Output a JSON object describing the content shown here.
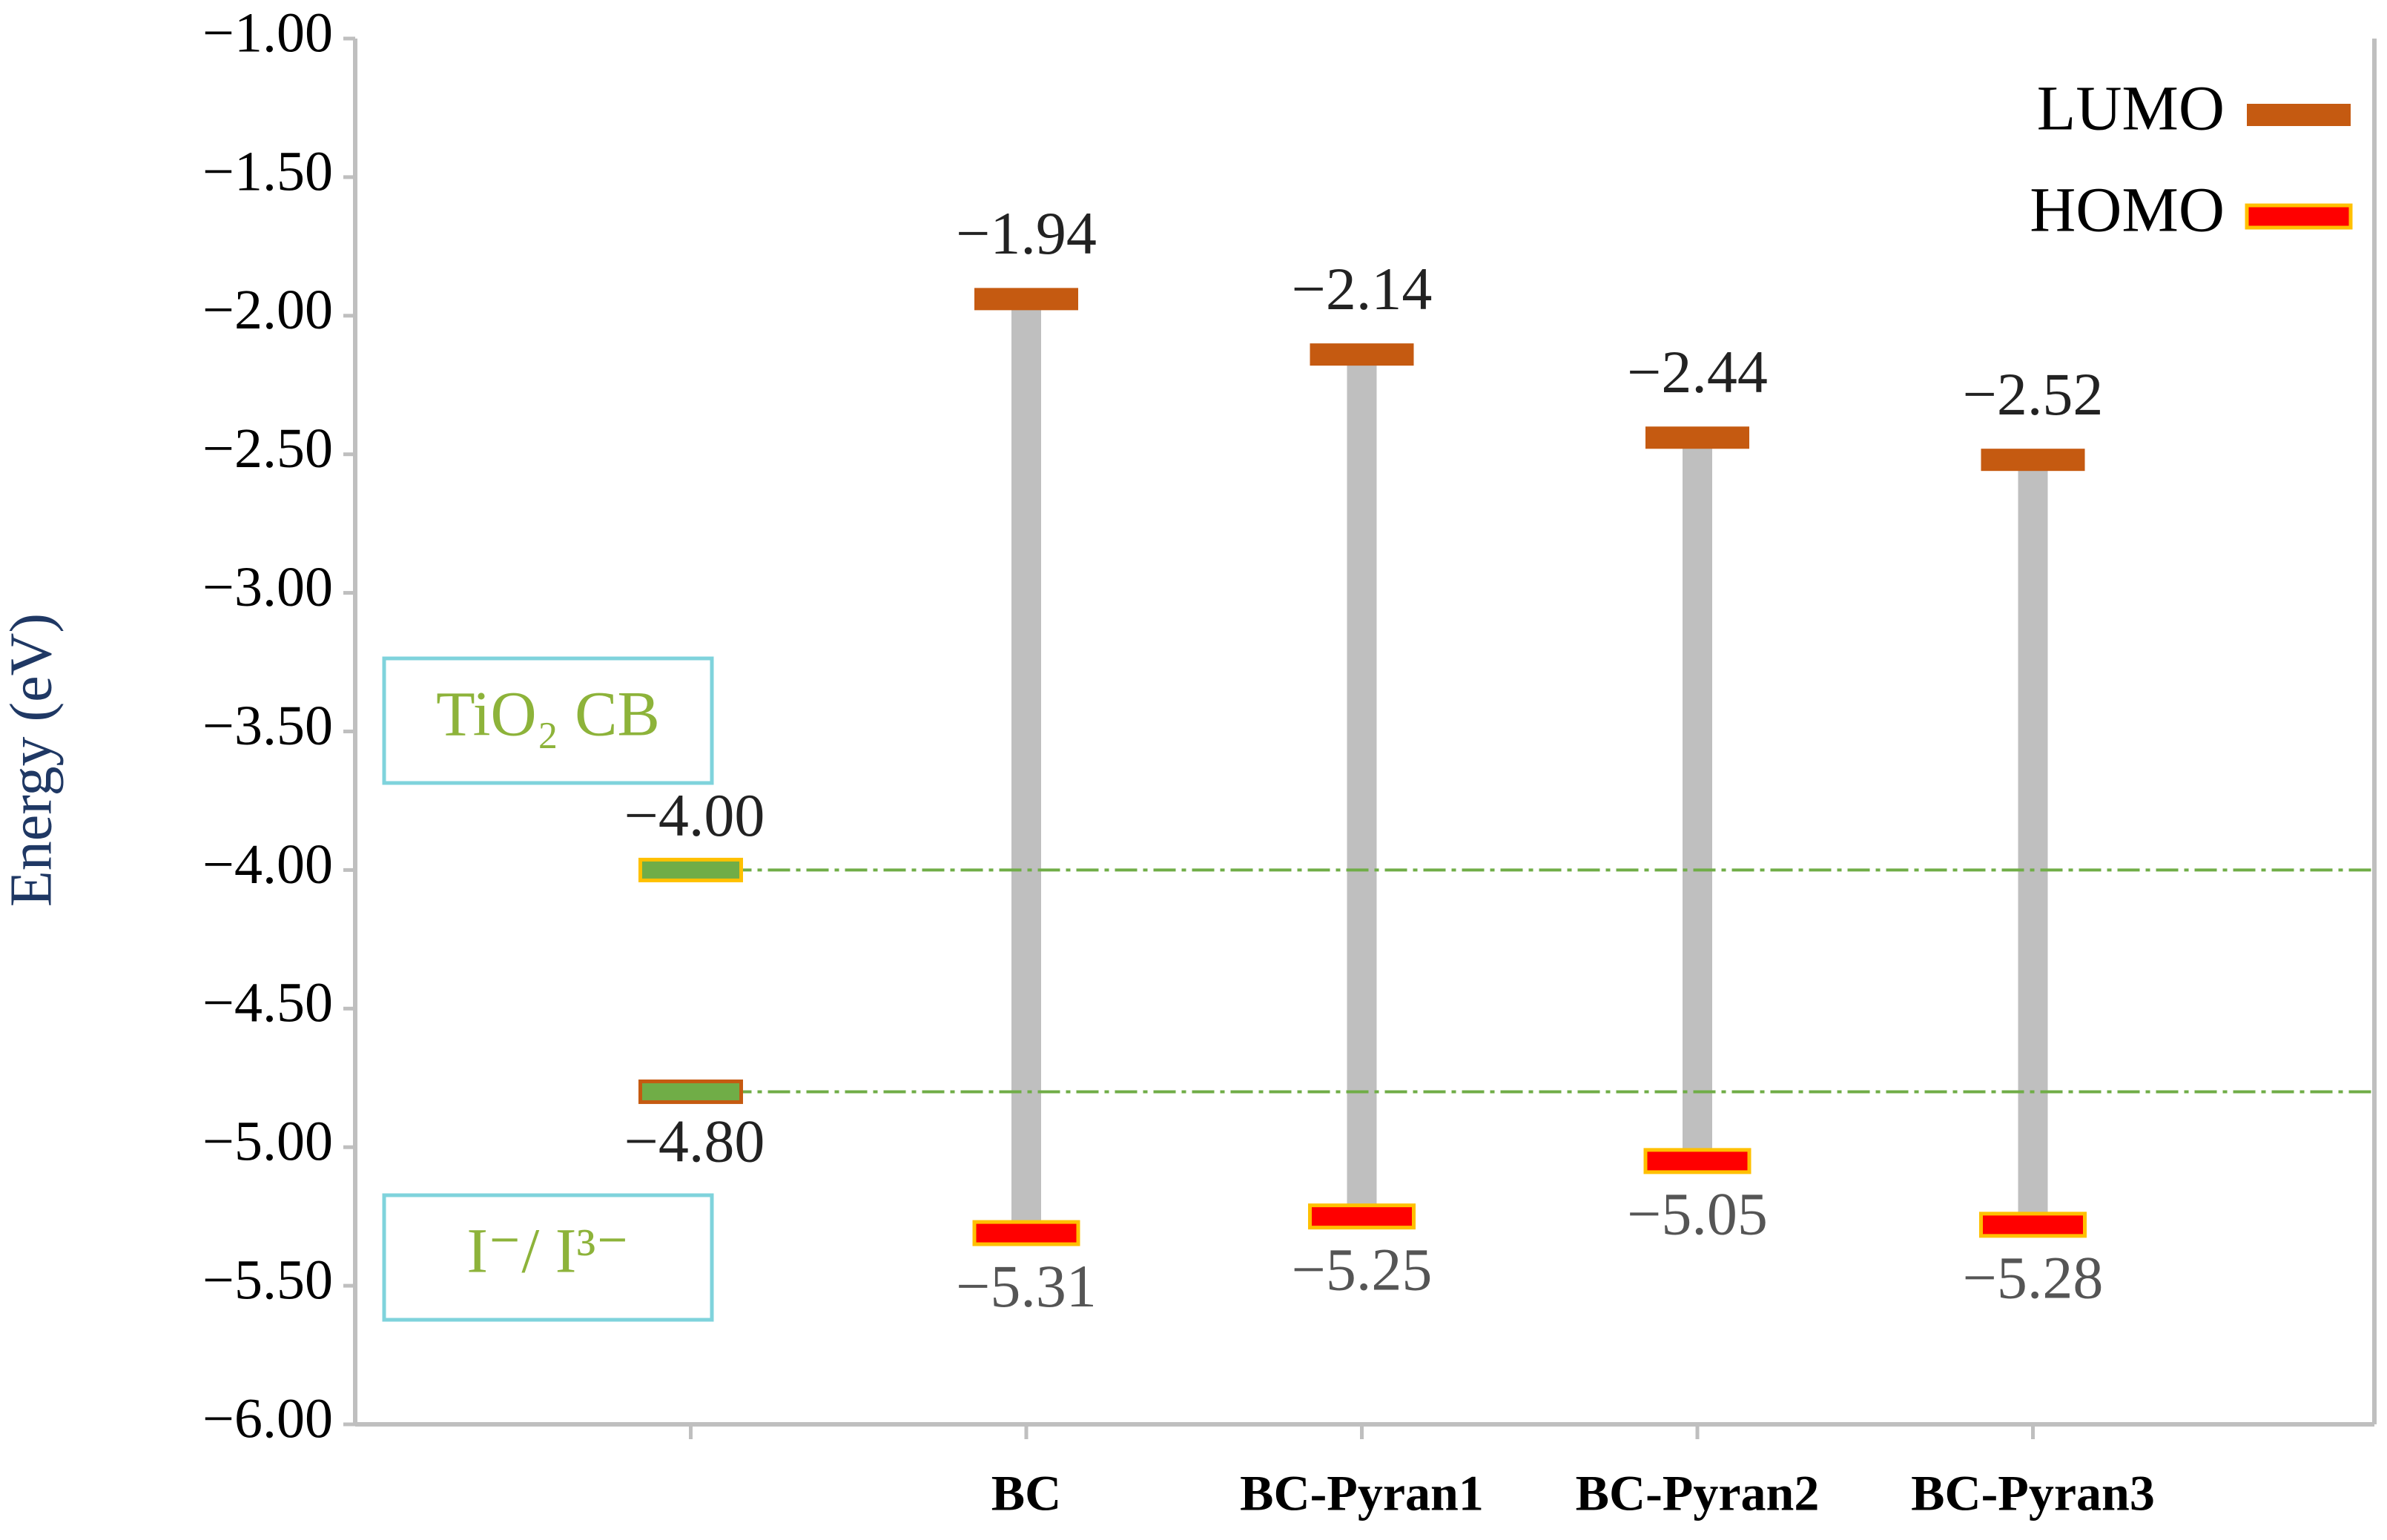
{
  "chart_data": {
    "type": "energy-level",
    "y_label": "Energy (eV)",
    "categories": [
      null,
      "BC",
      "BC-Pyran1",
      "BC-Pyran2",
      "BC-Pyran3"
    ],
    "series": [
      {
        "name": "LUMO",
        "color": "#c55a11",
        "values": [
          null,
          -1.94,
          -2.14,
          -2.44,
          -2.52
        ],
        "value_labels": [
          null,
          "−1.94",
          "−2.14",
          "−2.44",
          "−2.52"
        ]
      },
      {
        "name": "HOMO",
        "color": "#ff0000",
        "values": [
          null,
          -5.31,
          -5.25,
          -5.05,
          -5.28
        ],
        "value_labels": [
          null,
          "−5.31",
          "−5.25",
          "−5.05",
          "−5.28"
        ]
      }
    ],
    "levels": [
      {
        "name": "TiO₂ CB",
        "value": -4.0,
        "value_label": "−4.00",
        "color": "#70ad47"
      },
      {
        "name": "I⁻/ I³⁻",
        "value": -4.8,
        "value_label": "−4.80",
        "color": "#70ad47"
      }
    ],
    "ylim": [
      -6,
      -1
    ],
    "yticks": [
      {
        "value": -1,
        "label": "−1.00"
      },
      {
        "value": -1.5,
        "label": "−1.50"
      },
      {
        "value": -2,
        "label": "−2.00"
      },
      {
        "value": -2.5,
        "label": "−2.50"
      },
      {
        "value": -3,
        "label": "−3.00"
      },
      {
        "value": -3.5,
        "label": "−3.50"
      },
      {
        "value": -4,
        "label": "−4.00"
      },
      {
        "value": -4.5,
        "label": "−4.50"
      },
      {
        "value": -5,
        "label": "−5.00"
      },
      {
        "value": -5.5,
        "label": "−5.50"
      },
      {
        "value": -6,
        "label": "−6.00"
      }
    ],
    "gap_color": "#bfbfbf",
    "legend": "top-right"
  }
}
